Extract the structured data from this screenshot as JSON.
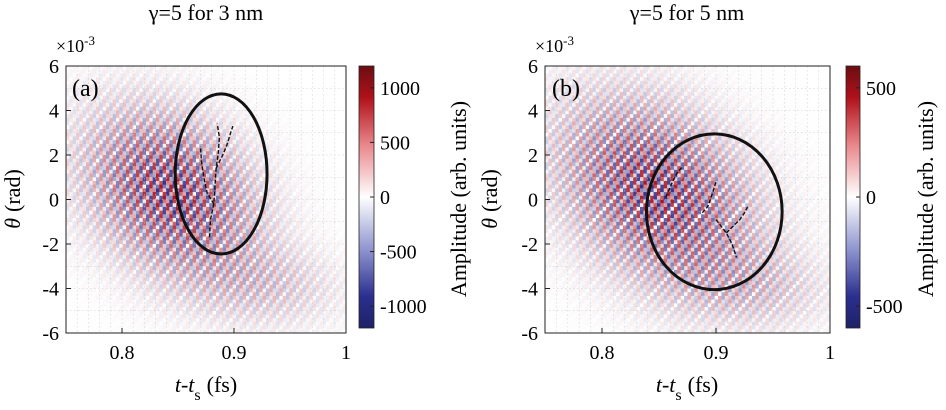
{
  "chart_data": [
    {
      "type": "heatmap",
      "panel_label": "(a)",
      "title": "γ=5 for 3 nm",
      "xlabel_main": "t-t",
      "xlabel_sub": "s",
      "xlabel_unit": "(fs)",
      "ylabel_symbol": "θ",
      "ylabel_unit": "(rad)",
      "y_exponent_prefix": "×10",
      "y_exponent": "-3",
      "xlim": [
        0.75,
        1.0
      ],
      "ylim": [
        -6,
        6
      ],
      "x_ticks": [
        0.8,
        0.9,
        1
      ],
      "x_tick_labels": [
        "0.8",
        "0.9",
        "1"
      ],
      "y_ticks": [
        -6,
        -4,
        -2,
        0,
        2,
        4,
        6
      ],
      "y_tick_labels": [
        "-6",
        "-4",
        "-2",
        "0",
        "2",
        "4",
        "6"
      ],
      "grid": true,
      "colorbar": {
        "label": "Amplitude (arb. units)",
        "range": [
          -1200,
          1200
        ],
        "ticks": [
          1000,
          500,
          0,
          -500,
          -1000
        ],
        "tick_labels": [
          "1000",
          "500",
          "0",
          "-500",
          "-1000"
        ],
        "colors": [
          "#2b2f8f",
          "#ffffff",
          "#b0111a"
        ]
      },
      "field": {
        "amplitude": 1200,
        "center_x": 0.845,
        "center_y": 0.3,
        "sigma_x": 0.045,
        "sigma_y": 2.3,
        "wavelength": 0.0085,
        "slope": -0.006
      },
      "annotation_ellipse": {
        "cx": 0.8885,
        "cy": 1.15,
        "rx": 0.041,
        "ry": 3.6
      },
      "branch_lines": [
        [
          [
            0.878,
            -1.7
          ],
          [
            0.879,
            -0.9
          ],
          [
            0.882,
            -0.2
          ],
          [
            0.883,
            0.6
          ],
          [
            0.884,
            1.4
          ],
          [
            0.886,
            2.1
          ],
          [
            0.887,
            2.8
          ],
          [
            0.885,
            3.4
          ]
        ],
        [
          [
            0.882,
            -0.2
          ],
          [
            0.876,
            0.3
          ],
          [
            0.873,
            1.0
          ],
          [
            0.871,
            1.7
          ],
          [
            0.87,
            2.4
          ]
        ],
        [
          [
            0.884,
            1.4
          ],
          [
            0.89,
            2.0
          ],
          [
            0.894,
            2.5
          ],
          [
            0.897,
            3.0
          ],
          [
            0.899,
            3.3
          ]
        ]
      ]
    },
    {
      "type": "heatmap",
      "panel_label": "(b)",
      "title": "γ=5 for 5 nm",
      "xlabel_main": "t-t",
      "xlabel_sub": "s",
      "xlabel_unit": "(fs)",
      "ylabel_symbol": "θ",
      "ylabel_unit": "(rad)",
      "y_exponent_prefix": "×10",
      "y_exponent": "-3",
      "xlim": [
        0.75,
        1.0
      ],
      "ylim": [
        -6,
        6
      ],
      "x_ticks": [
        0.8,
        0.9,
        1
      ],
      "x_tick_labels": [
        "0.8",
        "0.9",
        "1"
      ],
      "y_ticks": [
        -6,
        -4,
        -2,
        0,
        2,
        4,
        6
      ],
      "y_tick_labels": [
        "-6",
        "-4",
        "-2",
        "0",
        "2",
        "4",
        "6"
      ],
      "grid": true,
      "colorbar": {
        "label": "Amplitude (arb. units)",
        "range": [
          -600,
          600
        ],
        "ticks": [
          500,
          0,
          -500
        ],
        "tick_labels": [
          "500",
          "0",
          "-500"
        ],
        "colors": [
          "#2b2f8f",
          "#ffffff",
          "#b0111a"
        ]
      },
      "field": {
        "amplitude": 600,
        "center_x": 0.85,
        "center_y": 0.3,
        "sigma_x": 0.05,
        "sigma_y": 2.6,
        "wavelength": 0.0085,
        "slope": -0.007
      },
      "annotation_ellipse": {
        "cx": 0.8985,
        "cy": -0.55,
        "rx": 0.0595,
        "ry": 3.5
      },
      "branch_lines": [
        [
          [
            0.856,
            0.1
          ],
          [
            0.861,
            0.7
          ],
          [
            0.866,
            1.2
          ],
          [
            0.871,
            1.5
          ]
        ],
        [
          [
            0.888,
            -0.6
          ],
          [
            0.893,
            -0.3
          ],
          [
            0.897,
            0.3
          ],
          [
            0.9,
            0.8
          ]
        ],
        [
          [
            0.9,
            -0.9
          ],
          [
            0.909,
            -1.5
          ],
          [
            0.914,
            -2.0
          ],
          [
            0.918,
            -2.6
          ]
        ],
        [
          [
            0.909,
            -1.5
          ],
          [
            0.915,
            -1.2
          ],
          [
            0.921,
            -0.9
          ],
          [
            0.925,
            -0.6
          ],
          [
            0.928,
            -0.3
          ]
        ]
      ]
    }
  ]
}
